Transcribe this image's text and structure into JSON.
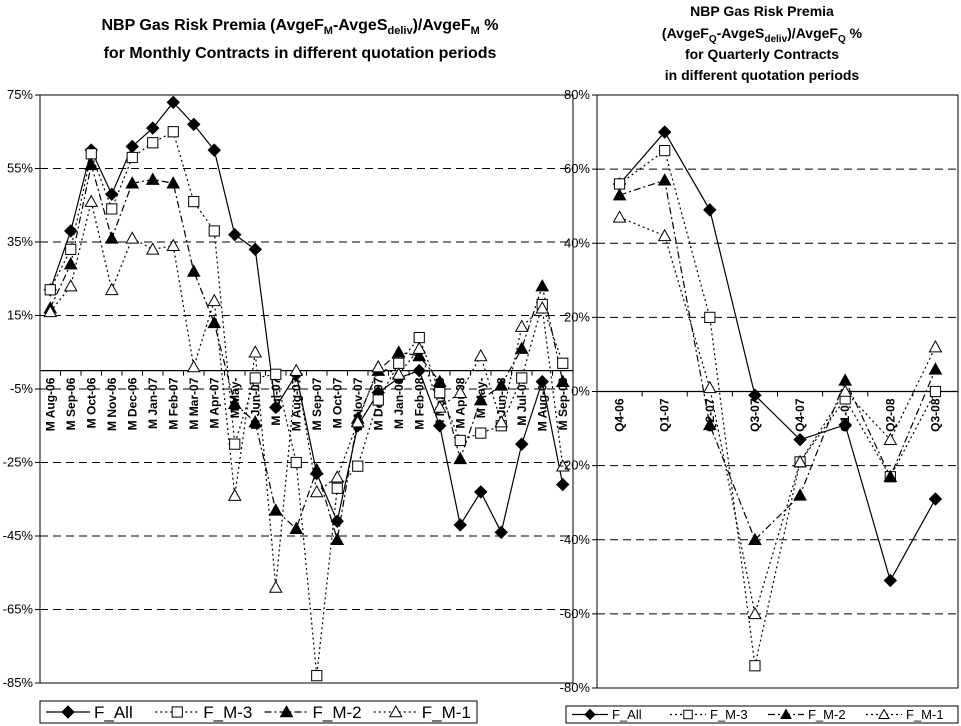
{
  "chart_data": [
    {
      "type": "line",
      "title_line1": "NBP Gas Risk Premia (AvgeF",
      "title_sub1": "M",
      "title_mid": "-AvgeS",
      "title_sub2": "deliv",
      "title_mid2": ")/AvgeF",
      "title_sub3": "M",
      "title_end": " %",
      "title_line2": "for Monthly Contracts in different quotation periods",
      "ylim": [
        -85,
        75
      ],
      "yticks": [
        "75%",
        "55%",
        "35%",
        "15%",
        "-5%",
        "-25%",
        "-45%",
        "-65%",
        "-85%"
      ],
      "ytick_values": [
        75,
        55,
        35,
        15,
        -5,
        -25,
        -45,
        -65,
        -85
      ],
      "grid": "horizontal dashed",
      "categories": [
        "M Aug-06",
        "M Sep-06",
        "M Oct-06",
        "M Nov-06",
        "M Dec-06",
        "M Jan-07",
        "M Feb-07",
        "M Mar-07",
        "M Apr-07",
        "M May-",
        "M Jun-07",
        "M Jul-07",
        "M Aug-07",
        "M Sep-07",
        "M Oct-07",
        "M Nov-07",
        "M Dec-07",
        "M Jan-08",
        "M Feb-08",
        "M Mar-08",
        "M Apr-08",
        "M May-",
        "M Jun-08",
        "M Jul-08",
        "M Aug-08",
        "M Sep-08"
      ],
      "series": [
        {
          "name": "F_All",
          "marker": "diamond-filled",
          "dash": "",
          "values": [
            22,
            38,
            60,
            48,
            61,
            66,
            73,
            67,
            60,
            37,
            33,
            -10,
            -1,
            -28,
            -41,
            -15,
            -6,
            -2,
            0,
            -15,
            -42,
            -33,
            -44,
            -20,
            -3,
            -31
          ]
        },
        {
          "name": "F_M-3",
          "marker": "square-open",
          "dash": "2,3",
          "values": [
            22,
            33,
            59,
            44,
            58,
            62,
            65,
            46,
            38,
            -20,
            -2,
            -1,
            -25,
            -83,
            -32,
            -26,
            -8,
            2,
            9,
            -6,
            -19,
            -17,
            -15,
            -2,
            18,
            2
          ]
        },
        {
          "name": "F_M-2",
          "marker": "triangle-filled",
          "dash": "7,3,2,3",
          "values": [
            17,
            29,
            56,
            36,
            51,
            52,
            51,
            27,
            13,
            -9,
            -14,
            -38,
            -43,
            -27,
            -46,
            -13,
            0,
            5,
            4,
            -3,
            -24,
            -8,
            -4,
            6,
            23,
            -3
          ]
        },
        {
          "name": "F_M-1",
          "marker": "triangle-open",
          "dash": "2,3",
          "values": [
            16,
            23,
            46,
            22,
            36,
            33,
            34,
            1,
            19,
            -34,
            5,
            -59,
            0,
            -33,
            -29,
            -14,
            1,
            -1,
            6,
            -10,
            -6,
            4,
            -14,
            12,
            17,
            -26
          ]
        }
      ],
      "legend_position": "bottom",
      "legend": [
        "F_All",
        "F_M-3",
        "F_M-2",
        "F_M-1"
      ]
    },
    {
      "type": "line",
      "title_a": "NBP Gas Risk Premia",
      "title_b1": "(AvgeF",
      "title_b_sub1": "Q",
      "title_b2": "-AvgeS",
      "title_b_sub2": "deliv",
      "title_b3": ")/AvgeF",
      "title_b_sub3": "Q",
      "title_b4": " %",
      "title_c": "for Quarterly Contracts",
      "title_d": "in different quotation periods",
      "ylim": [
        -80,
        80
      ],
      "yticks": [
        "80%",
        "60%",
        "40%",
        "20%",
        "0%",
        "-20%",
        "-40%",
        "-60%",
        "-80%"
      ],
      "ytick_values": [
        80,
        60,
        40,
        20,
        0,
        -20,
        -40,
        -60,
        -80
      ],
      "grid": "horizontal dashed",
      "categories": [
        "Q4-06",
        "Q1-07",
        "Q2-07",
        "Q3-07",
        "Q4-07",
        "Q1-08",
        "Q2-08",
        "Q3-08"
      ],
      "series": [
        {
          "name": "F_All",
          "marker": "diamond-filled",
          "dash": "",
          "values": [
            56,
            70,
            49,
            -1,
            -13,
            -9,
            -51,
            -29
          ]
        },
        {
          "name": "F_M-3",
          "marker": "square-open",
          "dash": "2,3",
          "values": [
            56,
            65,
            20,
            -74,
            -19,
            -2,
            -23,
            0
          ]
        },
        {
          "name": "F_M-2",
          "marker": "triangle-filled",
          "dash": "7,3,2,3",
          "values": [
            53,
            57,
            -9,
            -40,
            -28,
            3,
            -23,
            6
          ]
        },
        {
          "name": "F_M-1",
          "marker": "triangle-open",
          "dash": "2,3",
          "values": [
            47,
            42,
            1,
            -60,
            -19,
            0,
            -13,
            12
          ]
        }
      ],
      "legend_position": "bottom",
      "legend": [
        "F_All",
        "F_M-3",
        "F_M-2",
        "F_M-1"
      ]
    }
  ]
}
